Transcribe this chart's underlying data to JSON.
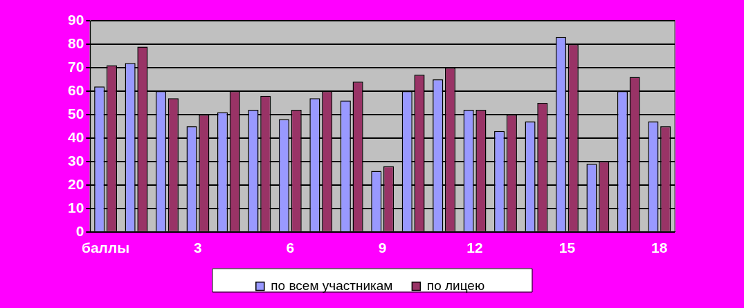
{
  "chart_data": {
    "type": "bar",
    "categories": [
      "баллы",
      null,
      null,
      "3",
      null,
      null,
      "6",
      null,
      null,
      "9",
      null,
      null,
      "12",
      null,
      null,
      "15",
      null,
      null,
      "18"
    ],
    "series": [
      {
        "name": "по всем участникам",
        "color": "#9999ff",
        "values": [
          62,
          72,
          60,
          45,
          51,
          52,
          48,
          57,
          56,
          26,
          60,
          65,
          52,
          43,
          47,
          83,
          29,
          60,
          47
        ]
      },
      {
        "name": "по лицею",
        "color": "#993366",
        "values": [
          71,
          79,
          57,
          50,
          60,
          58,
          52,
          60,
          64,
          28,
          67,
          70,
          52,
          50,
          55,
          80,
          30,
          66,
          45
        ]
      }
    ],
    "ylim": [
      0,
      90
    ],
    "yticks": [
      0,
      10,
      20,
      30,
      40,
      50,
      60,
      70,
      80,
      90
    ],
    "grid": "y",
    "legend": "bottom"
  }
}
